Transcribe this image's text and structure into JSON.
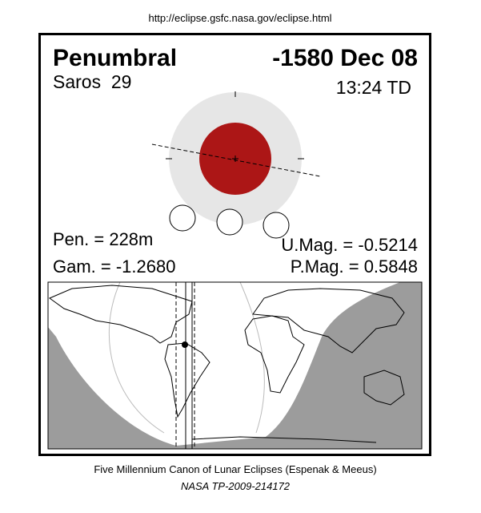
{
  "header": {
    "url": "http://eclipse.gsfc.nasa.gov/eclipse.html"
  },
  "panel": {
    "eclipse_type": "Penumbral",
    "date": "-1580 Dec 08",
    "saros": "Saros  29",
    "time": "13:24 TD",
    "penumbral_duration": "Pen. = 228m",
    "gamma": "Gam. = -1.2680",
    "umbral_magnitude": "U.Mag. = -0.5214",
    "penumbral_magnitude": "P.Mag. = 0.5848"
  },
  "footer": {
    "canon": "Five Millennium Canon of Lunar Eclipses (Espenak & Meeus)",
    "publication": "NASA TP-2009-214172"
  }
}
